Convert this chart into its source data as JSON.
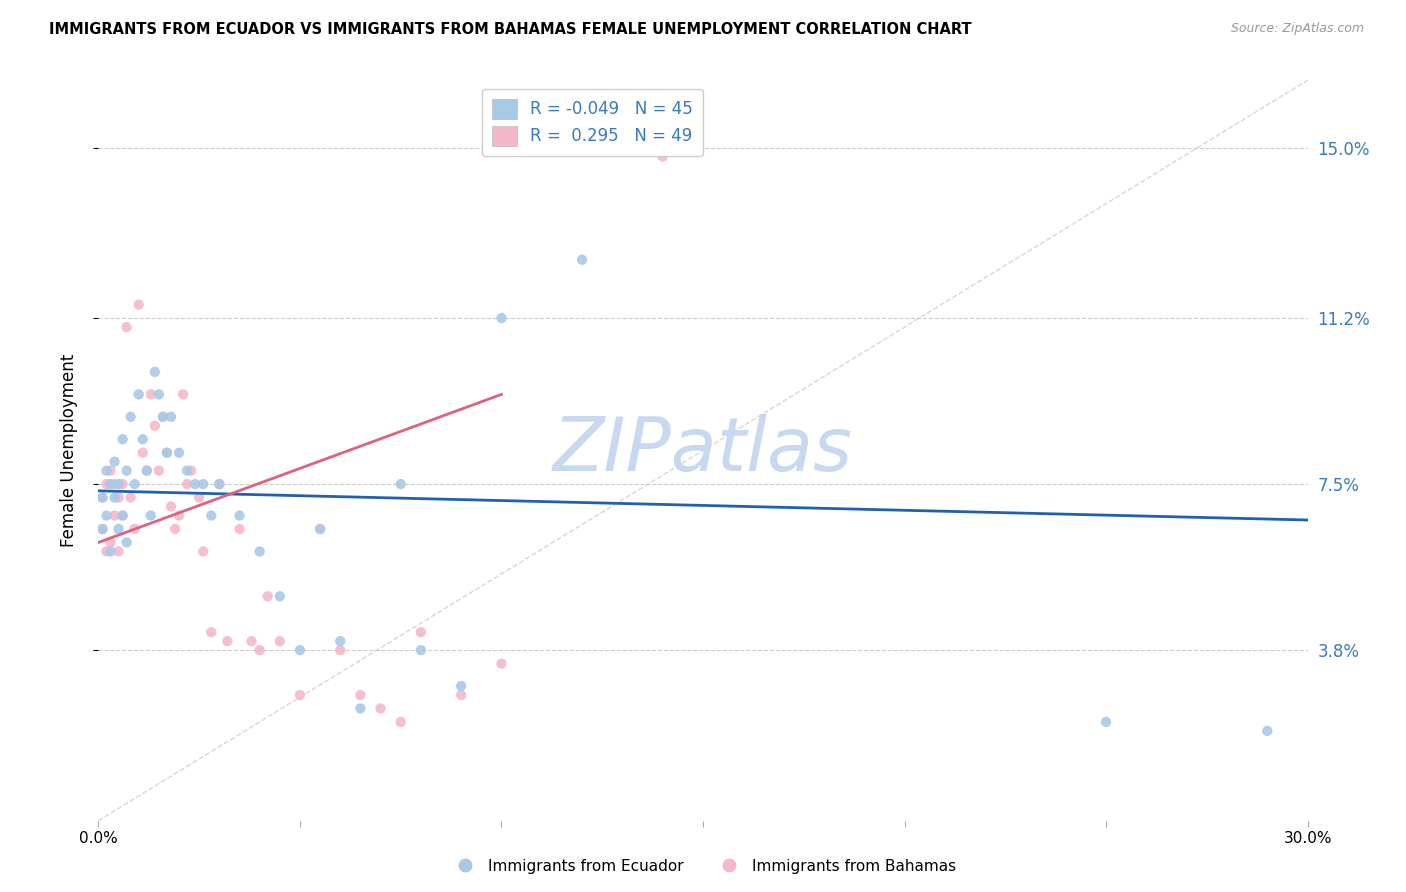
{
  "title": "IMMIGRANTS FROM ECUADOR VS IMMIGRANTS FROM BAHAMAS FEMALE UNEMPLOYMENT CORRELATION CHART",
  "source": "Source: ZipAtlas.com",
  "ylabel": "Female Unemployment",
  "ytick_labels": [
    "15.0%",
    "11.2%",
    "7.5%",
    "3.8%"
  ],
  "ytick_values": [
    0.15,
    0.112,
    0.075,
    0.038
  ],
  "xtick_labels": [
    "0.0%",
    "30.0%"
  ],
  "xtick_values": [
    0.0,
    0.3
  ],
  "xlim": [
    0.0,
    0.3
  ],
  "ylim": [
    0.0,
    0.165
  ],
  "legend_label_ecuador": "Immigrants from Ecuador",
  "legend_label_bahamas": "Immigrants from Bahamas",
  "color_ecuador": "#a8c8e8",
  "color_bahamas": "#f4b8c8",
  "color_trendline_ecuador": "#2060b0",
  "color_trendline_bahamas": "#e06080",
  "color_diagonal": "#d8c8c8",
  "watermark": "ZIPatlas",
  "watermark_color": "#c8d8f0",
  "R_ecuador": -0.049,
  "N_ecuador": 45,
  "R_bahamas": 0.295,
  "N_bahamas": 49,
  "ecuador_x": [
    0.001,
    0.001,
    0.002,
    0.002,
    0.003,
    0.003,
    0.004,
    0.004,
    0.005,
    0.005,
    0.006,
    0.006,
    0.007,
    0.007,
    0.008,
    0.009,
    0.01,
    0.011,
    0.012,
    0.013,
    0.014,
    0.015,
    0.016,
    0.017,
    0.018,
    0.02,
    0.022,
    0.024,
    0.026,
    0.028,
    0.03,
    0.035,
    0.04,
    0.045,
    0.05,
    0.055,
    0.06,
    0.065,
    0.075,
    0.08,
    0.09,
    0.1,
    0.12,
    0.25,
    0.29
  ],
  "ecuador_y": [
    0.072,
    0.065,
    0.078,
    0.068,
    0.075,
    0.06,
    0.072,
    0.08,
    0.075,
    0.065,
    0.085,
    0.068,
    0.078,
    0.062,
    0.09,
    0.075,
    0.095,
    0.085,
    0.078,
    0.068,
    0.1,
    0.095,
    0.09,
    0.082,
    0.09,
    0.082,
    0.078,
    0.075,
    0.075,
    0.068,
    0.075,
    0.068,
    0.06,
    0.05,
    0.038,
    0.065,
    0.04,
    0.025,
    0.075,
    0.038,
    0.03,
    0.112,
    0.125,
    0.022,
    0.02
  ],
  "bahamas_x": [
    0.001,
    0.001,
    0.002,
    0.002,
    0.003,
    0.003,
    0.004,
    0.004,
    0.005,
    0.005,
    0.006,
    0.006,
    0.007,
    0.008,
    0.009,
    0.01,
    0.011,
    0.012,
    0.013,
    0.014,
    0.015,
    0.016,
    0.017,
    0.018,
    0.019,
    0.02,
    0.021,
    0.022,
    0.023,
    0.025,
    0.026,
    0.028,
    0.03,
    0.032,
    0.035,
    0.038,
    0.04,
    0.042,
    0.045,
    0.05,
    0.055,
    0.06,
    0.065,
    0.07,
    0.075,
    0.08,
    0.09,
    0.1,
    0.14
  ],
  "bahamas_y": [
    0.072,
    0.065,
    0.075,
    0.06,
    0.078,
    0.062,
    0.068,
    0.075,
    0.06,
    0.072,
    0.075,
    0.068,
    0.11,
    0.072,
    0.065,
    0.115,
    0.082,
    0.078,
    0.095,
    0.088,
    0.078,
    0.09,
    0.082,
    0.07,
    0.065,
    0.068,
    0.095,
    0.075,
    0.078,
    0.072,
    0.06,
    0.042,
    0.075,
    0.04,
    0.065,
    0.04,
    0.038,
    0.05,
    0.04,
    0.028,
    0.065,
    0.038,
    0.028,
    0.025,
    0.022,
    0.042,
    0.028,
    0.035,
    0.148
  ],
  "trendline_ecuador_x0": 0.0,
  "trendline_ecuador_y0": 0.0735,
  "trendline_ecuador_x1": 0.3,
  "trendline_ecuador_y1": 0.067,
  "trendline_bahamas_x0": 0.0,
  "trendline_bahamas_y0": 0.062,
  "trendline_bahamas_x1": 0.1,
  "trendline_bahamas_y1": 0.095
}
